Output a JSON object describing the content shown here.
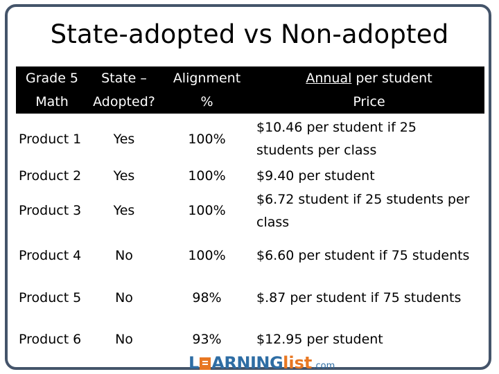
{
  "slide": {
    "title": "State-adopted vs Non-adopted"
  },
  "table": {
    "headers": [
      {
        "line1": "Grade 5",
        "line2": "Math"
      },
      {
        "line1": "State –",
        "line2": "Adopted?"
      },
      {
        "line1": "Alignment",
        "line2": "%"
      },
      {
        "line1_underlined": "Annual",
        "line1_rest": " per student",
        "line2": "Price"
      }
    ],
    "rows": [
      {
        "product": "Product 1",
        "adopted": "Yes",
        "alignment": "100%",
        "price_line1": "$10.46 per student if 25",
        "price_line2": "students per class"
      },
      {
        "product": "Product 2",
        "adopted": "Yes",
        "alignment": "100%",
        "price_line1": "$9.40 per student",
        "price_line2": ""
      },
      {
        "product": "Product 3",
        "adopted": "Yes",
        "alignment": "100%",
        "price_line1": "$6.72 student if 25 students per",
        "price_line2": "class"
      },
      {
        "product": "Product 4",
        "adopted": "No",
        "alignment": "100%",
        "price_line1": "$6.60 per student if 75 students",
        "price_line2": ""
      },
      {
        "product": "Product 5",
        "adopted": "No",
        "alignment": "98%",
        "price_line1": "$.87 per student if 75 students",
        "price_line2": ""
      },
      {
        "product": "Product 6",
        "adopted": "No",
        "alignment": "93%",
        "price_line1": "$12.95 per student",
        "price_line2": ""
      }
    ]
  },
  "logo": {
    "part1": "L",
    "part2": "ARNING",
    "part3": "list",
    "part4": ".com"
  },
  "colors": {
    "frame": "#44546a",
    "header_bg": "#000000",
    "logo_blue": "#2e6da4",
    "logo_orange": "#e87722"
  }
}
